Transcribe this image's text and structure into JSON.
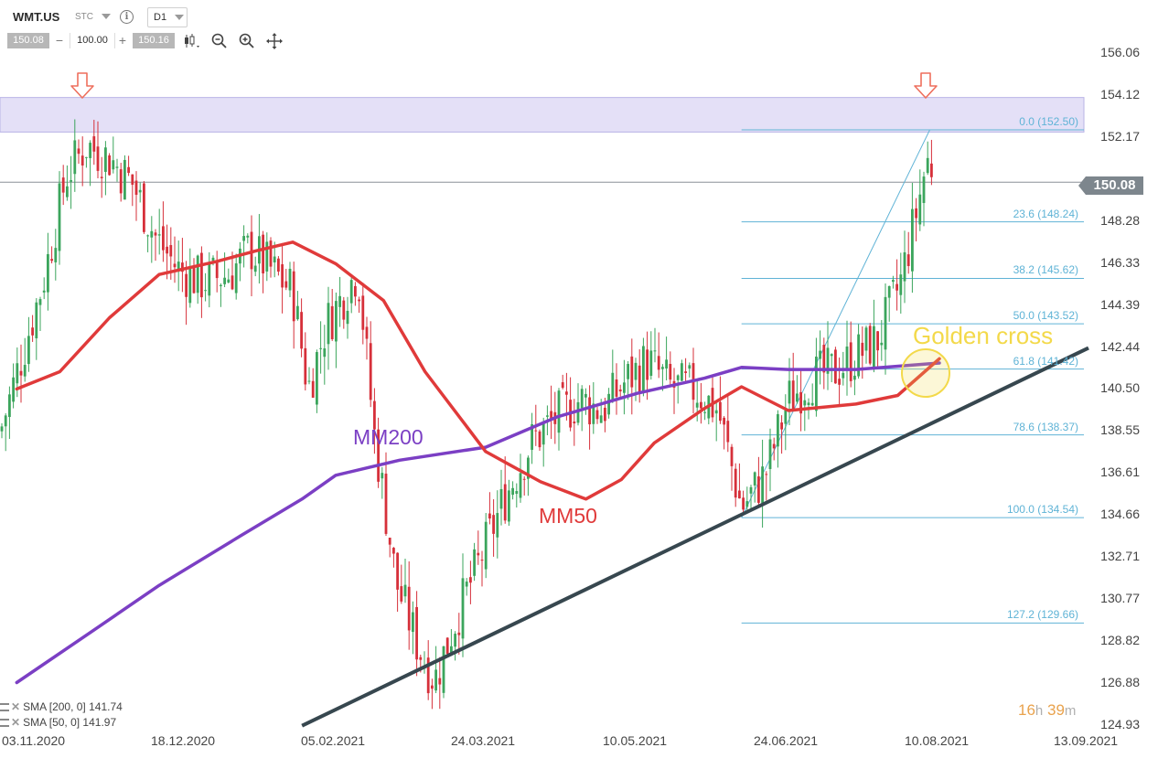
{
  "header": {
    "symbol": "WMT.US",
    "market_type": "STC",
    "info_icon": "info-icon",
    "timeframe": "D1",
    "bid": "150.08",
    "quantity": "100.00",
    "ask": "150.16",
    "minus": "−",
    "plus": "+",
    "tools": [
      "candlestick-type-icon",
      "zoom-out-icon",
      "zoom-in-icon",
      "crosshair-move-icon"
    ]
  },
  "y_axis": [
    "156.06",
    "154.12",
    "152.17",
    "150.08",
    "148.28",
    "146.33",
    "144.39",
    "142.44",
    "140.50",
    "138.55",
    "136.61",
    "134.66",
    "132.71",
    "130.77",
    "128.82",
    "126.88",
    "124.93"
  ],
  "x_axis": [
    "03.11.2020",
    "18.12.2020",
    "05.02.2021",
    "24.03.2021",
    "10.05.2021",
    "24.06.2021",
    "10.08.2021",
    "13.09.2021"
  ],
  "current_price": "150.08",
  "fibonacci": [
    {
      "label": "0.0 (152.50)",
      "value": 152.5
    },
    {
      "label": "23.6 (148.24)",
      "value": 148.24
    },
    {
      "label": "38.2 (145.62)",
      "value": 145.62
    },
    {
      "label": "50.0 (143.52)",
      "value": 143.52
    },
    {
      "label": "61.8 (141.42)",
      "value": 141.42
    },
    {
      "label": "78.6 (138.37)",
      "value": 138.37
    },
    {
      "label": "100.0 (134.54)",
      "value": 134.54
    },
    {
      "label": "127.2 (129.66)",
      "value": 129.66
    }
  ],
  "annotations": {
    "mm200": "MM200",
    "mm50": "MM50",
    "golden_cross": "Golden cross"
  },
  "legend": [
    {
      "text": "SMA [200, 0] 141.74"
    },
    {
      "text": "SMA [50, 0] 141.97"
    }
  ],
  "timer": {
    "hours": "16",
    "h": "h",
    "minutes": "39",
    "m": "m"
  },
  "colors": {
    "bull": "#3ba55c",
    "bear": "#d6303a",
    "sma200": "#7b3fc4",
    "sma50": "#e03a3a",
    "fib": "#5fb3d6",
    "trendline": "#37474f",
    "resistance_zone": "#e4e0f7",
    "arrow": "#ee6f5d",
    "golden": "#f3d94a"
  },
  "chart_data": {
    "type": "candlestick",
    "symbol": "WMT.US",
    "timeframe": "D1",
    "ylim": [
      124.93,
      156.06
    ],
    "x_ticks": [
      "03.11.2020",
      "18.12.2020",
      "05.02.2021",
      "24.03.2021",
      "10.05.2021",
      "24.06.2021",
      "10.08.2021",
      "13.09.2021"
    ],
    "last_price": 150.08,
    "resistance_zone": [
      152.4,
      154.0
    ],
    "sma200_last": 141.74,
    "sma50_last": 141.97,
    "sma200": [
      {
        "d": "2020-10-28",
        "v": 126.9
      },
      {
        "d": "2020-11-20",
        "v": 129.3
      },
      {
        "d": "2020-12-10",
        "v": 131.4
      },
      {
        "d": "2021-01-05",
        "v": 133.7
      },
      {
        "d": "2021-01-25",
        "v": 135.4
      },
      {
        "d": "2021-02-05",
        "v": 136.5
      },
      {
        "d": "2021-02-25",
        "v": 137.2
      },
      {
        "d": "2021-03-24",
        "v": 137.8
      },
      {
        "d": "2021-04-15",
        "v": 139.2
      },
      {
        "d": "2021-05-10",
        "v": 140.3
      },
      {
        "d": "2021-05-30",
        "v": 141.0
      },
      {
        "d": "2021-06-10",
        "v": 141.5
      },
      {
        "d": "2021-06-24",
        "v": 141.4
      },
      {
        "d": "2021-07-15",
        "v": 141.4
      },
      {
        "d": "2021-08-10",
        "v": 141.7
      }
    ],
    "sma50": [
      {
        "d": "2020-10-28",
        "v": 140.5
      },
      {
        "d": "2020-11-10",
        "v": 141.3
      },
      {
        "d": "2020-11-25",
        "v": 143.8
      },
      {
        "d": "2020-12-10",
        "v": 145.8
      },
      {
        "d": "2020-12-28",
        "v": 146.4
      },
      {
        "d": "2021-01-10",
        "v": 146.9
      },
      {
        "d": "2021-01-22",
        "v": 147.3
      },
      {
        "d": "2021-02-05",
        "v": 146.3
      },
      {
        "d": "2021-02-20",
        "v": 144.6
      },
      {
        "d": "2021-03-05",
        "v": 141.3
      },
      {
        "d": "2021-03-24",
        "v": 137.6
      },
      {
        "d": "2021-04-10",
        "v": 136.2
      },
      {
        "d": "2021-04-24",
        "v": 135.4
      },
      {
        "d": "2021-05-05",
        "v": 136.3
      },
      {
        "d": "2021-05-15",
        "v": 138.0
      },
      {
        "d": "2021-05-30",
        "v": 139.6
      },
      {
        "d": "2021-06-10",
        "v": 140.6
      },
      {
        "d": "2021-06-24",
        "v": 139.5
      },
      {
        "d": "2021-07-15",
        "v": 139.8
      },
      {
        "d": "2021-07-28",
        "v": 140.2
      },
      {
        "d": "2021-08-10",
        "v": 141.9
      }
    ],
    "trendline": [
      {
        "d": "2021-01-25",
        "v": 124.9
      },
      {
        "d": "2021-09-13",
        "v": 142.4
      }
    ],
    "fib_levels": [
      152.5,
      148.24,
      145.62,
      143.52,
      141.42,
      138.37,
      134.54,
      129.66
    ],
    "candles_close_path": [
      {
        "d": "2020-10-28",
        "v": 141.2
      },
      {
        "d": "2020-11-05",
        "v": 145.5
      },
      {
        "d": "2020-11-12",
        "v": 150.4
      },
      {
        "d": "2020-11-18",
        "v": 151.8
      },
      {
        "d": "2020-11-25",
        "v": 151.2
      },
      {
        "d": "2020-12-02",
        "v": 150.0
      },
      {
        "d": "2020-12-09",
        "v": 147.5
      },
      {
        "d": "2020-12-16",
        "v": 146.0
      },
      {
        "d": "2020-12-23",
        "v": 145.5
      },
      {
        "d": "2021-01-01",
        "v": 145.8
      },
      {
        "d": "2021-01-08",
        "v": 147.0
      },
      {
        "d": "2021-01-15",
        "v": 146.0
      },
      {
        "d": "2021-01-22",
        "v": 145.0
      },
      {
        "d": "2021-01-27",
        "v": 140.5
      },
      {
        "d": "2021-02-02",
        "v": 143.5
      },
      {
        "d": "2021-02-08",
        "v": 145.0
      },
      {
        "d": "2021-02-12",
        "v": 146.0
      },
      {
        "d": "2021-02-17",
        "v": 138.5
      },
      {
        "d": "2021-02-24",
        "v": 131.5
      },
      {
        "d": "2021-03-03",
        "v": 128.5
      },
      {
        "d": "2021-03-08",
        "v": 127.0
      },
      {
        "d": "2021-03-15",
        "v": 130.0
      },
      {
        "d": "2021-03-22",
        "v": 132.5
      },
      {
        "d": "2021-03-30",
        "v": 135.5
      },
      {
        "d": "2021-04-07",
        "v": 138.0
      },
      {
        "d": "2021-04-15",
        "v": 139.2
      },
      {
        "d": "2021-04-22",
        "v": 140.0
      },
      {
        "d": "2021-04-29",
        "v": 139.5
      },
      {
        "d": "2021-05-06",
        "v": 140.8
      },
      {
        "d": "2021-05-13",
        "v": 141.8
      },
      {
        "d": "2021-05-20",
        "v": 140.6
      },
      {
        "d": "2021-05-27",
        "v": 140.5
      },
      {
        "d": "2021-06-03",
        "v": 139.5
      },
      {
        "d": "2021-06-10",
        "v": 135.0
      },
      {
        "d": "2021-06-17",
        "v": 136.5
      },
      {
        "d": "2021-06-24",
        "v": 140.0
      },
      {
        "d": "2021-07-01",
        "v": 141.0
      },
      {
        "d": "2021-07-08",
        "v": 141.3
      },
      {
        "d": "2021-07-15",
        "v": 142.0
      },
      {
        "d": "2021-07-22",
        "v": 142.8
      },
      {
        "d": "2021-07-29",
        "v": 145.5
      },
      {
        "d": "2021-08-03",
        "v": 148.8
      },
      {
        "d": "2021-08-06",
        "v": 151.0
      },
      {
        "d": "2021-08-11",
        "v": 150.5
      },
      {
        "d": "2021-08-13",
        "v": 148.8
      }
    ]
  }
}
